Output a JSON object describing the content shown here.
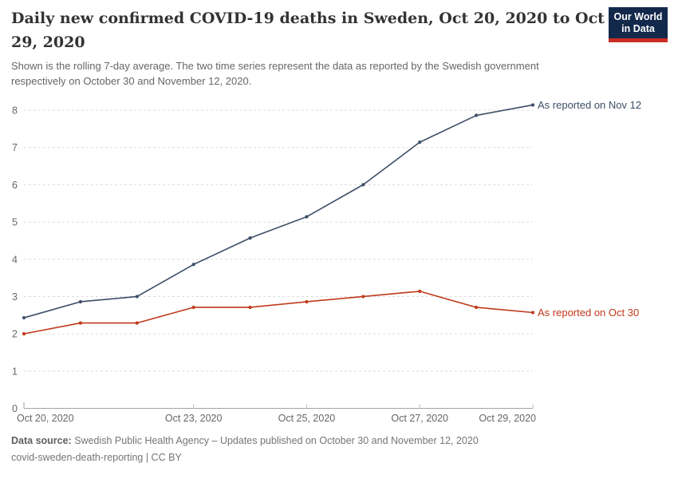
{
  "header": {
    "title": "Daily new confirmed COVID-19 deaths in Sweden, Oct 20, 2020 to Oct 29, 2020",
    "subtitle": "Shown is the rolling 7-day average. The two time series represent the data as reported by the Swedish government respectively on October 30 and November 12, 2020."
  },
  "logo": {
    "line1": "Our World",
    "line2": "in Data",
    "bg_color": "#13294B",
    "bar_color": "#CB2D23"
  },
  "chart_data": {
    "type": "line",
    "title": "Daily new confirmed COVID-19 deaths in Sweden, Oct 20, 2020 to Oct 29, 2020",
    "x": [
      "Oct 20, 2020",
      "Oct 21, 2020",
      "Oct 22, 2020",
      "Oct 23, 2020",
      "Oct 24, 2020",
      "Oct 25, 2020",
      "Oct 26, 2020",
      "Oct 27, 2020",
      "Oct 28, 2020",
      "Oct 29, 2020"
    ],
    "series": [
      {
        "name": "As reported on Nov 12",
        "color": "#3C4E66",
        "values": [
          2.43,
          2.86,
          3,
          3.86,
          4.57,
          5.14,
          6,
          7.14,
          7.86,
          8.14
        ]
      },
      {
        "name": "As reported on Oct 30",
        "color": "#C0391B",
        "values": [
          2,
          2.29,
          2.29,
          2.71,
          2.71,
          2.86,
          3,
          3.14,
          2.71,
          2.57
        ]
      }
    ],
    "x_ticks": [
      {
        "index": 0,
        "label": "Oct 20, 2020"
      },
      {
        "index": 3,
        "label": "Oct 23, 2020"
      },
      {
        "index": 5,
        "label": "Oct 25, 2020"
      },
      {
        "index": 7,
        "label": "Oct 27, 2020"
      },
      {
        "index": 9,
        "label": "Oct 29, 2020"
      }
    ],
    "y_ticks": [
      0,
      1,
      2,
      3,
      4,
      5,
      6,
      7,
      8
    ],
    "ylim": [
      0,
      8.2
    ],
    "grid": "horizontal dashed",
    "legend_position": "right of line ends",
    "marker": "dot"
  },
  "footer": {
    "source_label": "Data source:",
    "source_text": " Swedish Public Health Agency – Updates published on October 30 and November 12, 2020",
    "line2": "covid-sweden-death-reporting | CC BY"
  },
  "colors": {
    "title": "#333333",
    "subtitle": "#666666",
    "axis_label": "#666666",
    "grid": "#DDDDDD",
    "axis_line": "#A3A3A3",
    "tick_mark": "#B9B9B9",
    "series_nov12": "#3C4E66",
    "series_oct30": "#C0391B",
    "footer": "#757575"
  }
}
